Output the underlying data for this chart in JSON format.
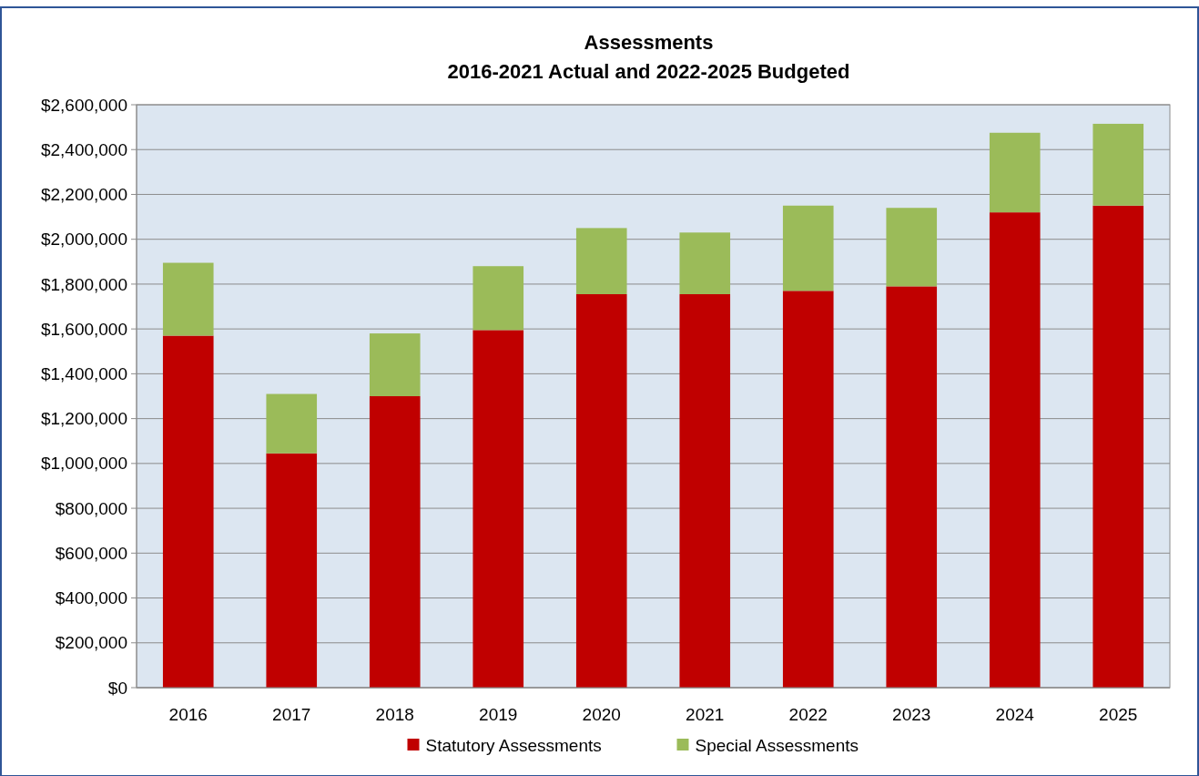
{
  "chart_data": {
    "type": "bar",
    "title": "Assessments",
    "subtitle": "2016-2021 Actual and 2022-2025 Budgeted",
    "categories": [
      "2016",
      "2017",
      "2018",
      "2019",
      "2020",
      "2021",
      "2022",
      "2023",
      "2024",
      "2025"
    ],
    "stacked": true,
    "series": [
      {
        "name": "Statutory Assessments",
        "color": "#c00000",
        "values": [
          1570000,
          1045000,
          1300000,
          1595000,
          1755000,
          1755000,
          1770000,
          1790000,
          2120000,
          2150000
        ]
      },
      {
        "name": "Special Assessments",
        "color": "#9bbb59",
        "values": [
          325000,
          265000,
          280000,
          285000,
          295000,
          275000,
          380000,
          350000,
          355000,
          365000
        ]
      }
    ],
    "ylim": [
      0,
      2600000
    ],
    "yticks": [
      {
        "value": 0,
        "label": "$0"
      },
      {
        "value": 200000,
        "label": "$200,000"
      },
      {
        "value": 400000,
        "label": "$400,000"
      },
      {
        "value": 600000,
        "label": "$600,000"
      },
      {
        "value": 800000,
        "label": "$800,000"
      },
      {
        "value": 1000000,
        "label": "$1,000,000"
      },
      {
        "value": 1200000,
        "label": "$1,200,000"
      },
      {
        "value": 1400000,
        "label": "$1,400,000"
      },
      {
        "value": 1600000,
        "label": "$1,600,000"
      },
      {
        "value": 1800000,
        "label": "$1,800,000"
      },
      {
        "value": 2000000,
        "label": "$2,000,000"
      },
      {
        "value": 2200000,
        "label": "$2,200,000"
      },
      {
        "value": 2400000,
        "label": "$2,400,000"
      },
      {
        "value": 2600000,
        "label": "$2,600,000"
      }
    ],
    "grid": "y",
    "legend": "bottom"
  }
}
